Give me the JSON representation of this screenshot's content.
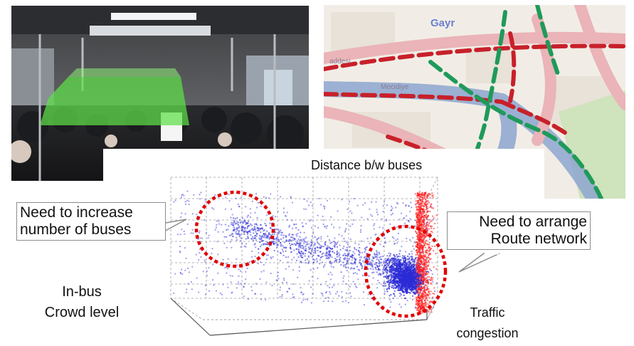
{
  "plot": {
    "axis_distance": "Distance b/w buses",
    "axis_crowd_line1": "In-bus",
    "axis_crowd_line2": "Crowd level",
    "axis_traffic_line1": "Traffic",
    "axis_traffic_line2": "congestion"
  },
  "callouts": {
    "left_line1": "Need to increase",
    "left_line2": "number of buses",
    "right_line1": "Need to arrange",
    "right_line2": "Route network"
  },
  "map": {
    "label_gayr": "Gayr",
    "label_mecidiye": "Mecidiye",
    "label_caddesi": "addesi"
  },
  "colors": {
    "cluster_blue": "#2b2bd6",
    "cluster_red": "#ff1a1a",
    "ellipse_red": "#e00000",
    "route_green": "#1f9a5a",
    "route_red": "#c8202a",
    "crowd_overlay": "#5ee04a",
    "callout_border": "#8c8c8c"
  },
  "icons": [
    "bus-interior-photo",
    "city-map-image",
    "scatter-3d-plot"
  ]
}
